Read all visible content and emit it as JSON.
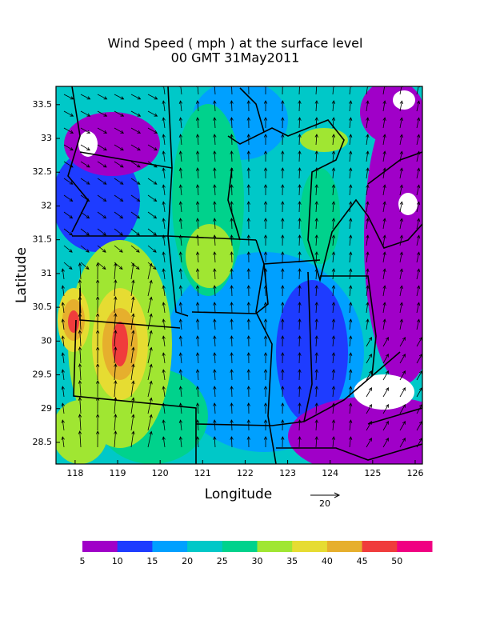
{
  "map": {
    "title": [
      "Wind Speed ( mph ) at the surface level",
      "00 GMT 31May2011"
    ],
    "x_label": "Longitude",
    "y_label": "Latitude",
    "xlim": [
      117.55,
      126.17
    ],
    "ylim": [
      28.18,
      33.77
    ],
    "xticks": [
      118,
      119,
      120,
      121,
      122,
      123,
      124,
      125,
      126
    ],
    "yticks": [
      28.5,
      29,
      29.5,
      30,
      30.5,
      31,
      31.5,
      32,
      32.5,
      33,
      33.5
    ],
    "reference_vector": "20",
    "colorbar": {
      "labels": [
        5,
        10,
        15,
        20,
        25,
        30,
        35,
        40,
        45,
        50
      ],
      "colors": [
        "#a000c8",
        "#1e3cff",
        "#00a0ff",
        "#00c8c8",
        "#00d28c",
        "#a0e632",
        "#e6dc32",
        "#e6af2d",
        "#f03c3c",
        "#f00082"
      ]
    }
  }
}
